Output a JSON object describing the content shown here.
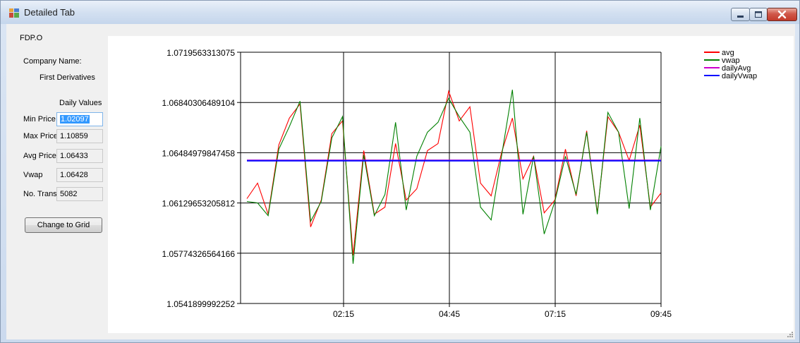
{
  "window": {
    "title": "Detailed Tab"
  },
  "left_panel": {
    "ticker": "FDP.O",
    "company_name_label": "Company Name:",
    "company_name": "First Derivatives",
    "daily_values_header": "Daily Values",
    "fields": [
      {
        "label": "Min Price",
        "value": "1.02097"
      },
      {
        "label": "Max Price",
        "value": "1.10859"
      },
      {
        "label": "Avg Price",
        "value": "1.06433"
      },
      {
        "label": "Vwap",
        "value": "1.06428"
      },
      {
        "label": "No. Trans",
        "value": "5082"
      }
    ],
    "change_button": "Change to Grid"
  },
  "colors": {
    "avg": "#ff0000",
    "vwap": "#008000",
    "dailyAvg": "#cc00cc",
    "dailyVwap": "#0000ff"
  },
  "chart_data": {
    "type": "line",
    "ylim": [
      1.0541899992252,
      1.0719563313075
    ],
    "y_ticks": [
      "1.0719563313075",
      "1.06840306489104",
      "1.06484979847458",
      "1.06129653205812",
      "1.05774326564166",
      "1.0541899992252"
    ],
    "x_ticks": [
      "02:15",
      "04:45",
      "07:15",
      "09:45"
    ],
    "grid": true,
    "legend_position": "top-right",
    "series": [
      {
        "name": "avg",
        "values": [
          1.0616,
          1.0627,
          1.0605,
          1.0654,
          1.0673,
          1.0683,
          1.0596,
          1.0615,
          1.0662,
          1.0671,
          1.0576,
          1.065,
          1.0605,
          1.061,
          1.0655,
          1.0615,
          1.0623,
          1.065,
          1.0655,
          1.0692,
          1.0671,
          1.0681,
          1.0627,
          1.0618,
          1.0649,
          1.0673,
          1.063,
          1.0646,
          1.0606,
          1.0615,
          1.0651,
          1.0618,
          1.0664,
          1.0606,
          1.0674,
          1.0663,
          1.0643,
          1.0668,
          1.061,
          1.062
        ]
      },
      {
        "name": "vwap",
        "values": [
          1.0614,
          1.0613,
          1.0604,
          1.0651,
          1.0667,
          1.0685,
          1.06,
          1.0614,
          1.0659,
          1.0674,
          1.057,
          1.0647,
          1.0604,
          1.0619,
          1.067,
          1.0608,
          1.0646,
          1.0663,
          1.067,
          1.0687,
          1.0674,
          1.0663,
          1.061,
          1.0601,
          1.0647,
          1.0693,
          1.0605,
          1.0646,
          1.0591,
          1.0614,
          1.0646,
          1.0619,
          1.0663,
          1.0605,
          1.0677,
          1.0663,
          1.0609,
          1.0673,
          1.0608,
          1.0653
        ]
      },
      {
        "name": "dailyAvg",
        "values": [
          1.06433,
          1.06433
        ]
      },
      {
        "name": "dailyVwap",
        "values": [
          1.06428,
          1.06428
        ]
      }
    ]
  }
}
